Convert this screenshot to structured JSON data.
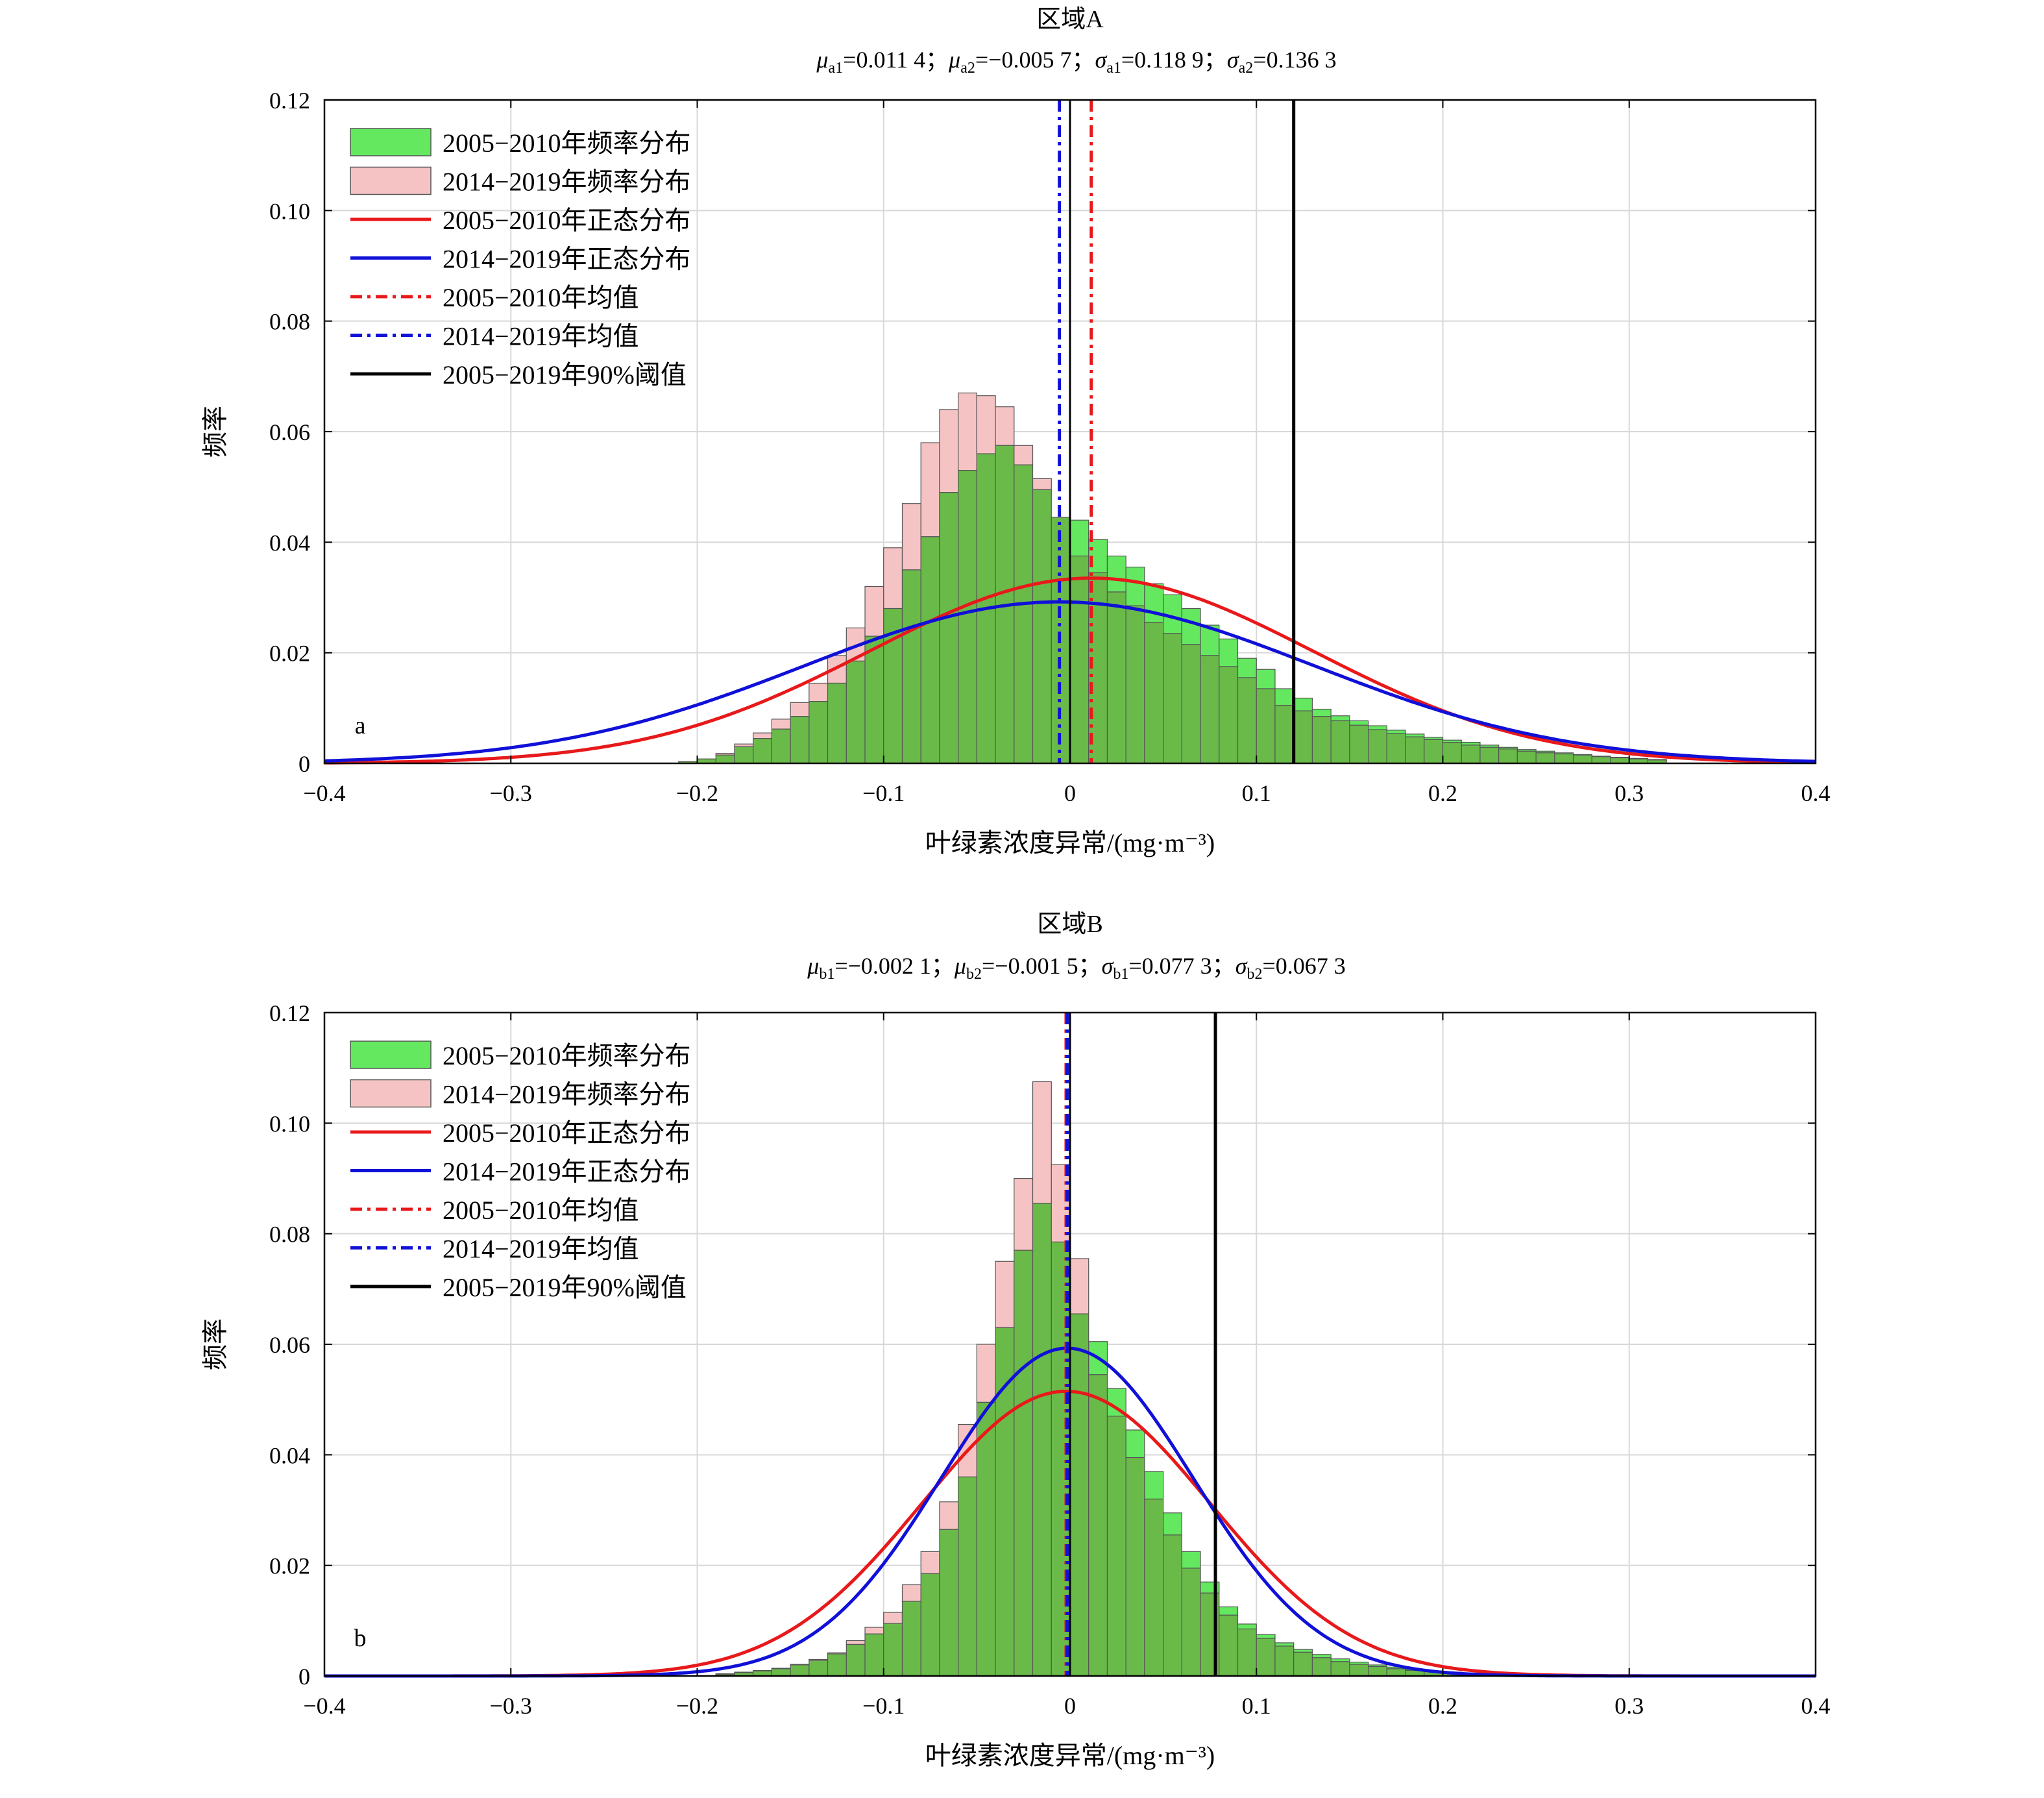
{
  "chart_data": [
    {
      "type": "bar",
      "panel_letter": "a",
      "title": "区域A",
      "subtitle_parts": [
        {
          "sym": "μ",
          "sub": "a1",
          "val": "=0.011 4；"
        },
        {
          "sym": "μ",
          "sub": "a2",
          "val": "=−0.005 7；"
        },
        {
          "sym": "σ",
          "sub": "a1",
          "val": "=0.118 9；"
        },
        {
          "sym": "σ",
          "sub": "a2",
          "val": "=0.136 3"
        }
      ],
      "xlabel": "叶绿素浓度异常/(mg·m⁻³)",
      "ylabel": "频率",
      "xlim": [
        -0.4,
        0.4
      ],
      "ylim": [
        0,
        0.12
      ],
      "xticks": [
        -0.4,
        -0.3,
        -0.2,
        -0.1,
        0,
        0.1,
        0.2,
        0.3,
        0.4
      ],
      "xtick_labels": [
        "−0.4",
        "−0.3",
        "−0.2",
        "−0.1",
        "0",
        "0.1",
        "0.2",
        "0.3",
        "0.4"
      ],
      "yticks": [
        0,
        0.02,
        0.04,
        0.06,
        0.08,
        0.1,
        0.12
      ],
      "ytick_labels": [
        "0",
        "0.02",
        "0.04",
        "0.06",
        "0.08",
        "0.10",
        "0.12"
      ],
      "grid": true,
      "legend_position": "top-left",
      "bin_width": 0.01,
      "bin_centers": [
        -0.205,
        -0.195,
        -0.185,
        -0.175,
        -0.165,
        -0.155,
        -0.145,
        -0.135,
        -0.125,
        -0.115,
        -0.105,
        -0.095,
        -0.085,
        -0.075,
        -0.065,
        -0.055,
        -0.045,
        -0.035,
        -0.025,
        -0.015,
        -0.005,
        0.005,
        0.015,
        0.025,
        0.035,
        0.045,
        0.055,
        0.065,
        0.075,
        0.085,
        0.095,
        0.105,
        0.115,
        0.125,
        0.135,
        0.145,
        0.155,
        0.165,
        0.175,
        0.185,
        0.195,
        0.205,
        0.215,
        0.225,
        0.235,
        0.245,
        0.255,
        0.265,
        0.275,
        0.285,
        0.295,
        0.305,
        0.315
      ],
      "series": [
        {
          "name": "2005−2010年频率分布",
          "kind": "hist",
          "values": [
            0.0003,
            0.0008,
            0.0015,
            0.003,
            0.0045,
            0.0062,
            0.0085,
            0.0112,
            0.0145,
            0.0185,
            0.023,
            0.028,
            0.035,
            0.041,
            0.049,
            0.053,
            0.056,
            0.0575,
            0.054,
            0.0495,
            0.0445,
            0.044,
            0.0405,
            0.0375,
            0.0355,
            0.0325,
            0.0305,
            0.028,
            0.025,
            0.0225,
            0.019,
            0.017,
            0.0135,
            0.0118,
            0.0098,
            0.0086,
            0.0077,
            0.0068,
            0.006,
            0.0053,
            0.0047,
            0.0042,
            0.0038,
            0.0033,
            0.0029,
            0.0025,
            0.0022,
            0.0019,
            0.0016,
            0.0013,
            0.0011,
            0.0009,
            0.0007
          ]
        },
        {
          "name": "2014−2019年频率分布",
          "kind": "hist",
          "values": [
            0.0003,
            0.0008,
            0.0018,
            0.0035,
            0.0055,
            0.008,
            0.011,
            0.0145,
            0.0195,
            0.0245,
            0.032,
            0.039,
            0.047,
            0.058,
            0.064,
            0.067,
            0.0665,
            0.0645,
            0.0575,
            0.0515,
            0.0445,
            0.0375,
            0.0345,
            0.031,
            0.0285,
            0.0255,
            0.0235,
            0.0215,
            0.0195,
            0.0175,
            0.0155,
            0.0135,
            0.0105,
            0.0095,
            0.0085,
            0.0077,
            0.0069,
            0.0061,
            0.0054,
            0.0048,
            0.0043,
            0.0038,
            0.0033,
            0.0029,
            0.0026,
            0.0022,
            0.0019,
            0.0017,
            0.0014,
            0.0012,
            0.001,
            0.0008,
            0.0006
          ]
        },
        {
          "name": "2005−2010年正态分布",
          "kind": "normal",
          "mu": 0.0114,
          "sigma": 0.1189,
          "peak": 0.0335,
          "color": "#e8191b"
        },
        {
          "name": "2014−2019年正态分布",
          "kind": "normal",
          "mu": -0.0057,
          "sigma": 0.1363,
          "peak": 0.0292,
          "color": "#1010d8"
        },
        {
          "name": "2005−2010年均值",
          "kind": "vline",
          "x": 0.0114,
          "color": "#e8191b"
        },
        {
          "name": "2014−2019年均值",
          "kind": "vline",
          "x": -0.0057,
          "color": "#1010d8"
        },
        {
          "name": "2005−2019年90%阈值",
          "kind": "vline",
          "x": 0.12,
          "color": "#000000"
        }
      ],
      "extra_vline_x": 0.0
    },
    {
      "type": "bar",
      "panel_letter": "b",
      "title": "区域B",
      "subtitle_parts": [
        {
          "sym": "μ",
          "sub": "b1",
          "val": "=−0.002 1；"
        },
        {
          "sym": "μ",
          "sub": "b2",
          "val": "=−0.001 5；"
        },
        {
          "sym": "σ",
          "sub": "b1",
          "val": "=0.077 3；"
        },
        {
          "sym": "σ",
          "sub": "b2",
          "val": "=0.067 3"
        }
      ],
      "xlabel": "叶绿素浓度异常/(mg·m⁻³)",
      "ylabel": "频率",
      "xlim": [
        -0.4,
        0.4
      ],
      "ylim": [
        0,
        0.12
      ],
      "xticks": [
        -0.4,
        -0.3,
        -0.2,
        -0.1,
        0,
        0.1,
        0.2,
        0.3,
        0.4
      ],
      "xtick_labels": [
        "−0.4",
        "−0.3",
        "−0.2",
        "−0.1",
        "0",
        "0.1",
        "0.2",
        "0.3",
        "0.4"
      ],
      "yticks": [
        0,
        0.02,
        0.04,
        0.06,
        0.08,
        0.1,
        0.12
      ],
      "ytick_labels": [
        "0",
        "0.02",
        "0.04",
        "0.06",
        "0.08",
        "0.10",
        "0.12"
      ],
      "grid": true,
      "legend_position": "top-left",
      "bin_width": 0.01,
      "bin_centers": [
        -0.185,
        -0.175,
        -0.165,
        -0.155,
        -0.145,
        -0.135,
        -0.125,
        -0.115,
        -0.105,
        -0.095,
        -0.085,
        -0.075,
        -0.065,
        -0.055,
        -0.045,
        -0.035,
        -0.025,
        -0.015,
        -0.005,
        0.005,
        0.015,
        0.025,
        0.035,
        0.045,
        0.055,
        0.065,
        0.075,
        0.085,
        0.095,
        0.105,
        0.115,
        0.125,
        0.135,
        0.145,
        0.155,
        0.165,
        0.175,
        0.185,
        0.195,
        0.205,
        0.215,
        0.225,
        0.235,
        0.245,
        0.255,
        0.265,
        0.275,
        0.285,
        0.295,
        0.305
      ],
      "series": [
        {
          "name": "2005−2010年频率分布",
          "kind": "hist",
          "values": [
            0.0004,
            0.0007,
            0.001,
            0.0014,
            0.002,
            0.0028,
            0.004,
            0.0057,
            0.0076,
            0.0095,
            0.0135,
            0.0185,
            0.0265,
            0.036,
            0.0495,
            0.063,
            0.077,
            0.0855,
            0.0785,
            0.0655,
            0.0605,
            0.052,
            0.0445,
            0.037,
            0.0295,
            0.0225,
            0.017,
            0.0125,
            0.0094,
            0.0075,
            0.006,
            0.0048,
            0.0039,
            0.0031,
            0.0025,
            0.002,
            0.0016,
            0.0012,
            0.0009,
            0.0007,
            0.0005,
            0.0004,
            0.0003,
            0.0003,
            0.0002,
            0.0002,
            0.0002,
            0.0001,
            0.0001,
            0.0001
          ]
        },
        {
          "name": "2014−2019年频率分布",
          "kind": "hist",
          "values": [
            0.0003,
            0.0006,
            0.0009,
            0.0013,
            0.0021,
            0.003,
            0.0042,
            0.0064,
            0.0088,
            0.0115,
            0.0165,
            0.0225,
            0.0315,
            0.0455,
            0.06,
            0.075,
            0.09,
            0.1075,
            0.0925,
            0.0755,
            0.0545,
            0.047,
            0.0395,
            0.032,
            0.0255,
            0.0195,
            0.015,
            0.011,
            0.0085,
            0.0068,
            0.0054,
            0.0043,
            0.0033,
            0.0026,
            0.0021,
            0.0017,
            0.0013,
            0.001,
            0.0008,
            0.0006,
            0.0005,
            0.0004,
            0.0003,
            0.0002,
            0.0002,
            0.0002,
            0.0001,
            0.0001,
            0.0001,
            0.0001
          ]
        },
        {
          "name": "2005−2010年正态分布",
          "kind": "normal",
          "mu": -0.0021,
          "sigma": 0.0773,
          "peak": 0.0515,
          "color": "#e8191b"
        },
        {
          "name": "2014−2019年正态分布",
          "kind": "normal",
          "mu": -0.0015,
          "sigma": 0.0673,
          "peak": 0.0593,
          "color": "#1010d8"
        },
        {
          "name": "2005−2010年均值",
          "kind": "vline",
          "x": -0.0021,
          "color": "#e8191b"
        },
        {
          "name": "2014−2019年均值",
          "kind": "vline",
          "x": -0.0015,
          "color": "#1010d8"
        },
        {
          "name": "2005−2019年90%阈值",
          "kind": "vline",
          "x": 0.078,
          "color": "#000000"
        }
      ],
      "extra_vline_x": 0.0
    }
  ],
  "colors": {
    "hist1_fill": "#63e85f",
    "hist2_fill": "#f5c3c3",
    "overlap_fill": "#6aba4a",
    "bar_edge": "#555555",
    "grid": "#d8d8d8",
    "normal1": "#e8191b",
    "normal2": "#1010d8",
    "threshold": "#000000"
  }
}
